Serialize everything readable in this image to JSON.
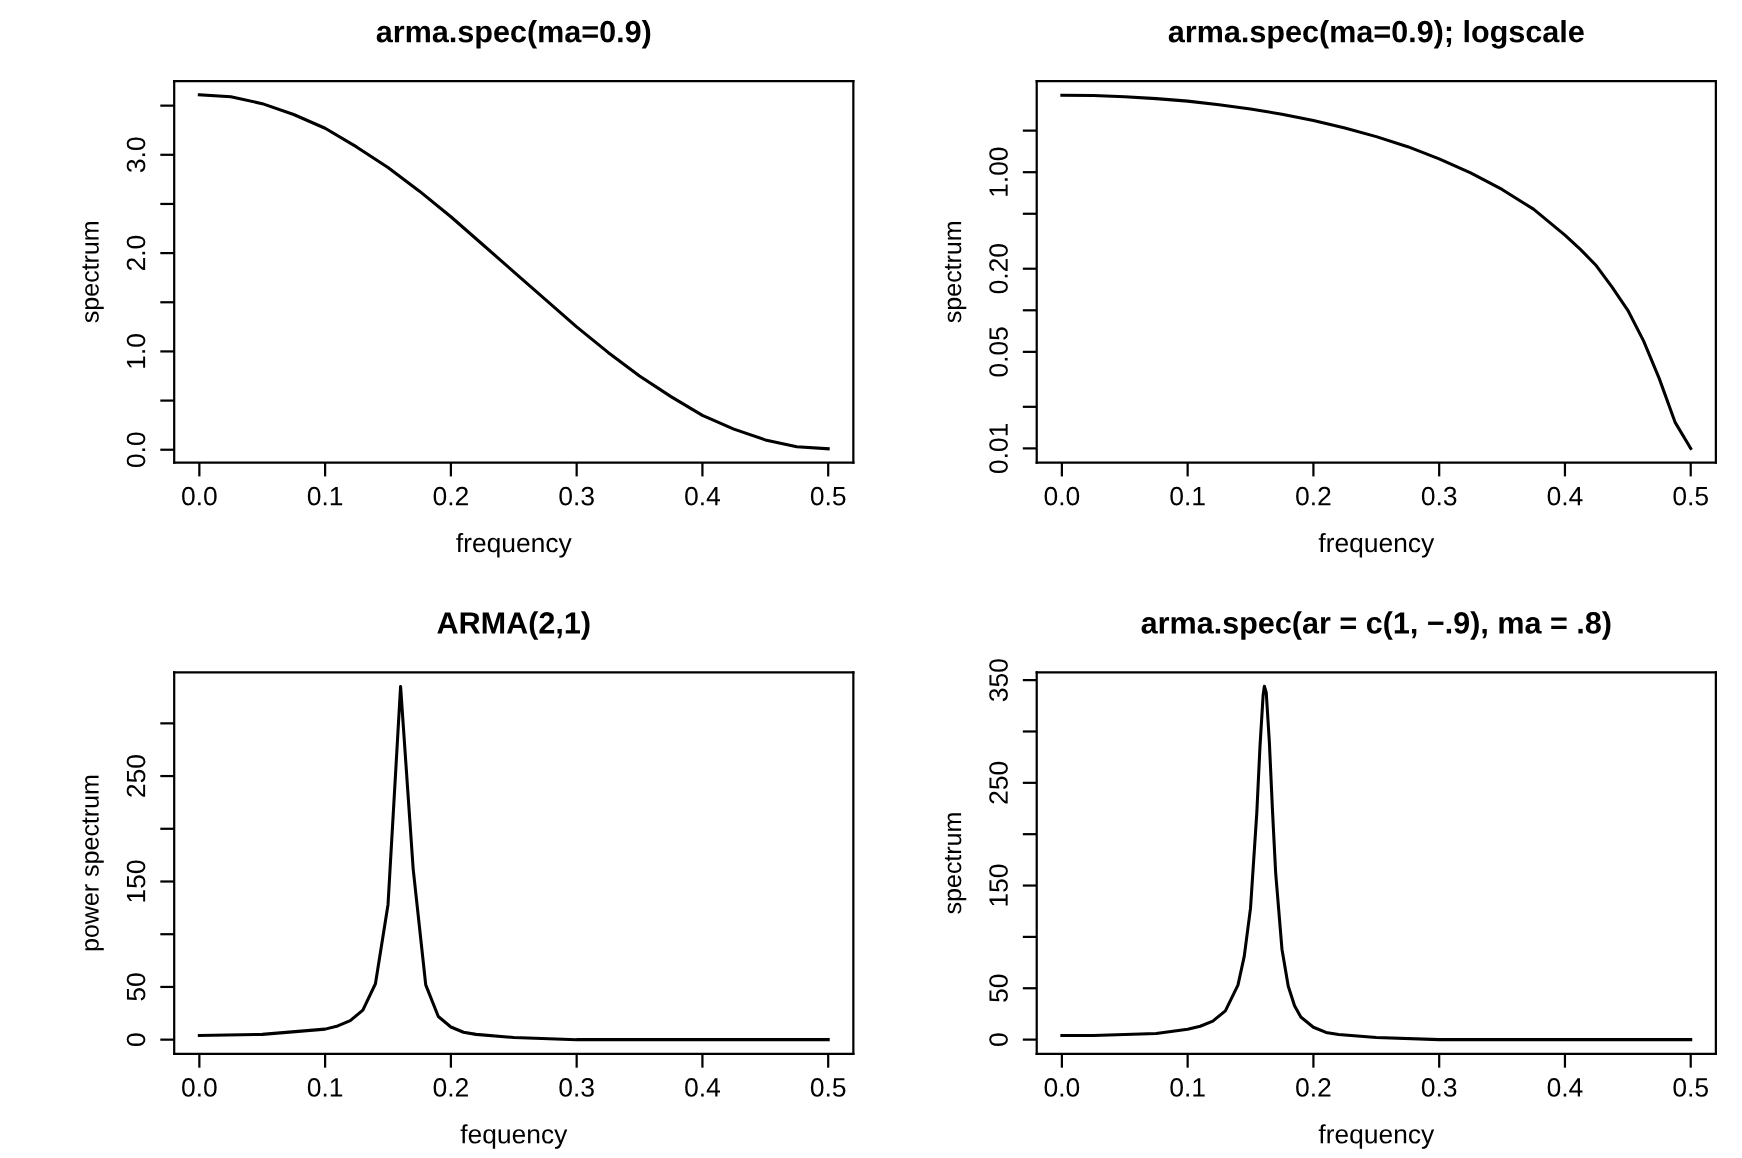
{
  "chart_data": [
    {
      "type": "line",
      "title": "arma.spec(ma=0.9)",
      "xlabel": "frequency",
      "ylabel": "spectrum",
      "color": "#000000",
      "x": [
        0,
        0.025,
        0.05,
        0.075,
        0.1,
        0.125,
        0.15,
        0.175,
        0.2,
        0.225,
        0.25,
        0.275,
        0.3,
        0.325,
        0.35,
        0.375,
        0.4,
        0.425,
        0.45,
        0.475,
        0.5
      ],
      "values": [
        3.61,
        3.59,
        3.52,
        3.41,
        3.27,
        3.08,
        2.87,
        2.63,
        2.37,
        2.09,
        1.81,
        1.53,
        1.25,
        0.99,
        0.75,
        0.54,
        0.35,
        0.21,
        0.1,
        0.03,
        0.01
      ],
      "xlim": [
        -0.02,
        0.52
      ],
      "ylim": [
        -0.13,
        3.75
      ],
      "xticks": [
        {
          "value": 0,
          "label": "0.0"
        },
        {
          "value": 0.1,
          "label": "0.1"
        },
        {
          "value": 0.2,
          "label": "0.2"
        },
        {
          "value": 0.3,
          "label": "0.3"
        },
        {
          "value": 0.4,
          "label": "0.4"
        },
        {
          "value": 0.5,
          "label": "0.5"
        }
      ],
      "yticks": [
        {
          "value": 0,
          "label": "0.0"
        },
        {
          "value": 0.5,
          "label": null
        },
        {
          "value": 1,
          "label": "1.0"
        },
        {
          "value": 1.5,
          "label": null
        },
        {
          "value": 2,
          "label": "2.0"
        },
        {
          "value": 2.5,
          "label": null
        },
        {
          "value": 3,
          "label": "3.0"
        },
        {
          "value": 3.5,
          "label": null
        }
      ]
    },
    {
      "type": "line",
      "title": "arma.spec(ma=0.9); logscale",
      "xlabel": "frequency",
      "ylabel": "spectrum",
      "color": "#000000",
      "log": "y",
      "x": [
        0,
        0.025,
        0.05,
        0.075,
        0.1,
        0.125,
        0.15,
        0.175,
        0.2,
        0.225,
        0.25,
        0.275,
        0.3,
        0.325,
        0.35,
        0.375,
        0.4,
        0.4125,
        0.425,
        0.4375,
        0.45,
        0.4625,
        0.475,
        0.4875,
        0.5
      ],
      "values": [
        3.61,
        3.59,
        3.52,
        3.41,
        3.27,
        3.08,
        2.87,
        2.63,
        2.37,
        2.09,
        1.81,
        1.53,
        1.25,
        0.99,
        0.75,
        0.54,
        0.35,
        0.275,
        0.21,
        0.147,
        0.1,
        0.06,
        0.032,
        0.0155,
        0.01
      ],
      "xlim": [
        -0.02,
        0.52
      ],
      "ylim": [
        0.0079,
        4.57
      ],
      "xticks": [
        {
          "value": 0,
          "label": "0.0"
        },
        {
          "value": 0.1,
          "label": "0.1"
        },
        {
          "value": 0.2,
          "label": "0.2"
        },
        {
          "value": 0.3,
          "label": "0.3"
        },
        {
          "value": 0.4,
          "label": "0.4"
        },
        {
          "value": 0.5,
          "label": "0.5"
        }
      ],
      "yticks": [
        0.01,
        {
          "value": 0.02,
          "label": null
        },
        0.05,
        {
          "value": 0.1,
          "label": null
        },
        {
          "value": 0.2,
          "label": "0.20"
        },
        {
          "value": 0.5,
          "label": null
        },
        {
          "value": 1,
          "label": "1.00"
        },
        {
          "value": 2,
          "label": null
        }
      ]
    },
    {
      "type": "line",
      "title": "ARMA(2,1)",
      "xlabel": "fequency",
      "ylabel": "power spectrum",
      "color": "#000000",
      "x": [
        0,
        0.05,
        0.1,
        0.11,
        0.12,
        0.13,
        0.14,
        0.15,
        0.16,
        0.17,
        0.18,
        0.19,
        0.2,
        0.21,
        0.22,
        0.25,
        0.3,
        0.35,
        0.4,
        0.45,
        0.5
      ],
      "values": [
        4,
        5,
        10,
        13,
        18,
        28,
        53,
        128,
        335,
        162,
        52,
        22,
        12,
        7,
        5,
        2,
        0,
        0,
        0,
        0,
        0
      ],
      "xlim": [
        -0.02,
        0.52
      ],
      "ylim": [
        -13.4,
        348.4
      ],
      "xticks": [
        {
          "value": 0,
          "label": "0.0"
        },
        {
          "value": 0.1,
          "label": "0.1"
        },
        {
          "value": 0.2,
          "label": "0.2"
        },
        {
          "value": 0.3,
          "label": "0.3"
        },
        {
          "value": 0.4,
          "label": "0.4"
        },
        {
          "value": 0.5,
          "label": "0.5"
        }
      ],
      "yticks": [
        0,
        50,
        {
          "value": 100,
          "label": null
        },
        150,
        {
          "value": 200,
          "label": null
        },
        250,
        {
          "value": 300,
          "label": null
        }
      ]
    },
    {
      "type": "line",
      "title": "arma.spec(ar = c(1, −.9), ma = .8)",
      "xlabel": "frequency",
      "ylabel": "spectrum",
      "color": "#000000",
      "x": [
        0,
        0.025,
        0.05,
        0.075,
        0.1,
        0.11,
        0.12,
        0.13,
        0.14,
        0.145,
        0.15,
        0.155,
        0.1575,
        0.16,
        0.161,
        0.1625,
        0.165,
        0.1675,
        0.17,
        0.175,
        0.18,
        0.185,
        0.19,
        0.2,
        0.21,
        0.22,
        0.25,
        0.3,
        0.35,
        0.4,
        0.45,
        0.5
      ],
      "values": [
        4,
        4,
        5,
        6,
        10,
        13,
        18,
        28,
        53,
        81,
        128,
        221,
        285,
        335,
        344,
        338,
        289,
        222,
        162,
        88,
        52,
        33,
        22,
        12,
        7,
        5,
        2,
        0,
        0,
        0,
        0,
        0
      ],
      "xlim": [
        -0.02,
        0.52
      ],
      "ylim": [
        -13.8,
        357.6
      ],
      "xticks": [
        {
          "value": 0,
          "label": "0.0"
        },
        {
          "value": 0.1,
          "label": "0.1"
        },
        {
          "value": 0.2,
          "label": "0.2"
        },
        {
          "value": 0.3,
          "label": "0.3"
        },
        {
          "value": 0.4,
          "label": "0.4"
        },
        {
          "value": 0.5,
          "label": "0.5"
        }
      ],
      "yticks": [
        0,
        50,
        {
          "value": 100,
          "label": null
        },
        150,
        {
          "value": 200,
          "label": null
        },
        250,
        {
          "value": 300,
          "label": null
        },
        350
      ]
    }
  ]
}
